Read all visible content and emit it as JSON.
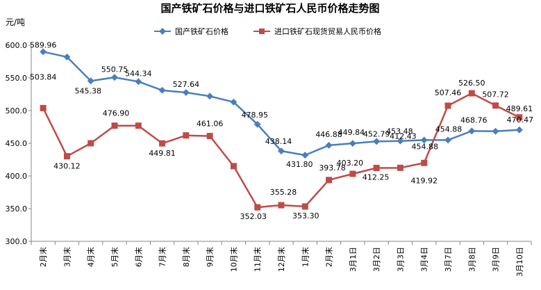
{
  "chart_data": {
    "type": "line",
    "title": "国产铁矿石价格与进口铁矿石人民币价格走势图",
    "ylabel": "元/吨",
    "ylim": [
      300,
      600
    ],
    "yticks": [
      "300.0",
      "350.0",
      "400.0",
      "450.0",
      "500.0",
      "550.0",
      "600.0"
    ],
    "categories": [
      "2月末",
      "3月末",
      "4月末",
      "5月末",
      "6月末",
      "7月末",
      "8月末",
      "9月末",
      "10月末",
      "11月末",
      "12月末",
      "1月末",
      "2月末",
      "3月1日",
      "3月2日",
      "3月3日",
      "3月4日",
      "3月7日",
      "3月8日",
      "3月9日",
      "3月10日"
    ],
    "legend_position": "top",
    "grid": false,
    "series": [
      {
        "name": "国产铁矿石价格",
        "color": "#4a7ebb",
        "marker": "diamond",
        "values": [
          589.96,
          582,
          545.38,
          550.75,
          544.34,
          531,
          527.64,
          522,
          513,
          478.95,
          438.14,
          431.8,
          446.88,
          449.84,
          452.79,
          453.48,
          454.88,
          454.88,
          468.76,
          468.3,
          470.47
        ],
        "labels": [
          "589.96",
          "",
          "545.38",
          "550.75",
          "544.34",
          "",
          "527.64",
          "",
          "",
          "478.95",
          "438.14",
          "431.80",
          "446.88",
          "449.84",
          "452.79",
          "453.48",
          "454.88",
          "454.88",
          "468.76",
          "",
          "470.47"
        ]
      },
      {
        "name": "进口铁矿石现货贸易人民币价格",
        "color": "#be4b48",
        "marker": "square",
        "values": [
          503.84,
          430.12,
          450,
          476.9,
          476.9,
          449.81,
          462,
          461.06,
          415,
          352.03,
          355.28,
          353.3,
          393.78,
          403.2,
          412.25,
          412.43,
          419.92,
          507.46,
          526.5,
          507.72,
          489.61
        ],
        "labels": [
          "503.84",
          "430.12",
          "",
          "476.90",
          "",
          "449.81",
          "",
          "461.06",
          "",
          "352.03",
          "355.28",
          "353.30",
          "393.78",
          "403.20",
          "412.25",
          "412.43",
          "419.92",
          "507.46",
          "526.50",
          "507.72",
          "489.61"
        ]
      }
    ]
  }
}
